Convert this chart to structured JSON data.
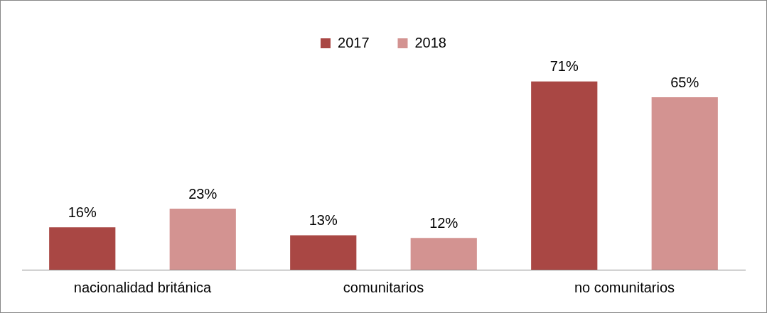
{
  "chart_data": {
    "type": "bar",
    "categories": [
      "nacionalidad británica",
      "comunitarios",
      "no comunitarios"
    ],
    "series": [
      {
        "name": "2017",
        "color": "#a94744",
        "values": [
          16,
          13,
          71
        ],
        "value_labels": [
          "16%",
          "13%",
          "71%"
        ]
      },
      {
        "name": "2018",
        "color": "#d39391",
        "values": [
          23,
          12,
          65
        ],
        "value_labels": [
          "23%",
          "12%",
          "65%"
        ]
      }
    ],
    "legend": "top"
  }
}
